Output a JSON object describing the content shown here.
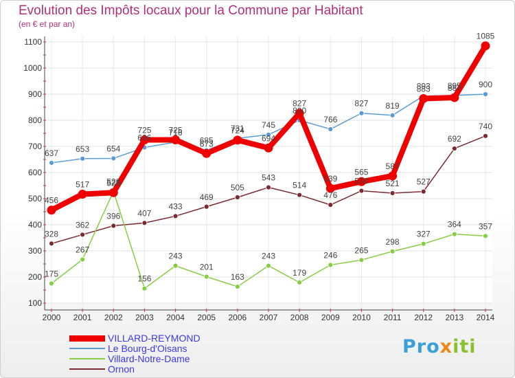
{
  "header": {
    "title": "Evolution des Impôts locaux pour la Commune par Habitant",
    "subtitle": "(en € et par an)"
  },
  "brand": {
    "parts": [
      "Pro",
      "x",
      "iti"
    ],
    "colors": [
      "#3aa0d8",
      "#e8891a",
      "#88c030"
    ]
  },
  "chart_data": {
    "type": "line",
    "x": [
      "2000",
      "2001",
      "2002",
      "2003",
      "2004",
      "2005",
      "2006",
      "2007",
      "2008",
      "2009",
      "2010",
      "2011",
      "2012",
      "2013",
      "2014"
    ],
    "ylim": [
      100,
      1100
    ],
    "yticks": [
      100,
      200,
      300,
      400,
      500,
      600,
      700,
      800,
      900,
      1000,
      1100
    ],
    "grid": true,
    "legend_position": "bottom-left",
    "series": [
      {
        "name": "VILLARD-REYMOND",
        "color": "#ee0000",
        "values": [
          456,
          517,
          523,
          725,
          725,
          673,
          724,
          694,
          827,
          539,
          565,
          587,
          883,
          887,
          1085
        ]
      },
      {
        "name": "Le Bourg-d'Oisans",
        "color": "#5b9bd5",
        "values": [
          637,
          653,
          654,
          696,
          716,
          685,
          731,
          745,
          800,
          766,
          827,
          819,
          893,
          895,
          900
        ]
      },
      {
        "name": "Villard-Notre-Dame",
        "color": "#88cc44",
        "values": [
          175,
          267,
          528,
          156,
          243,
          201,
          163,
          243,
          179,
          246,
          265,
          298,
          327,
          364,
          357
        ]
      },
      {
        "name": "Ornon",
        "color": "#7a2a30",
        "values": [
          328,
          362,
          396,
          407,
          433,
          469,
          505,
          543,
          514,
          476,
          530,
          521,
          527,
          692,
          740
        ]
      }
    ]
  }
}
